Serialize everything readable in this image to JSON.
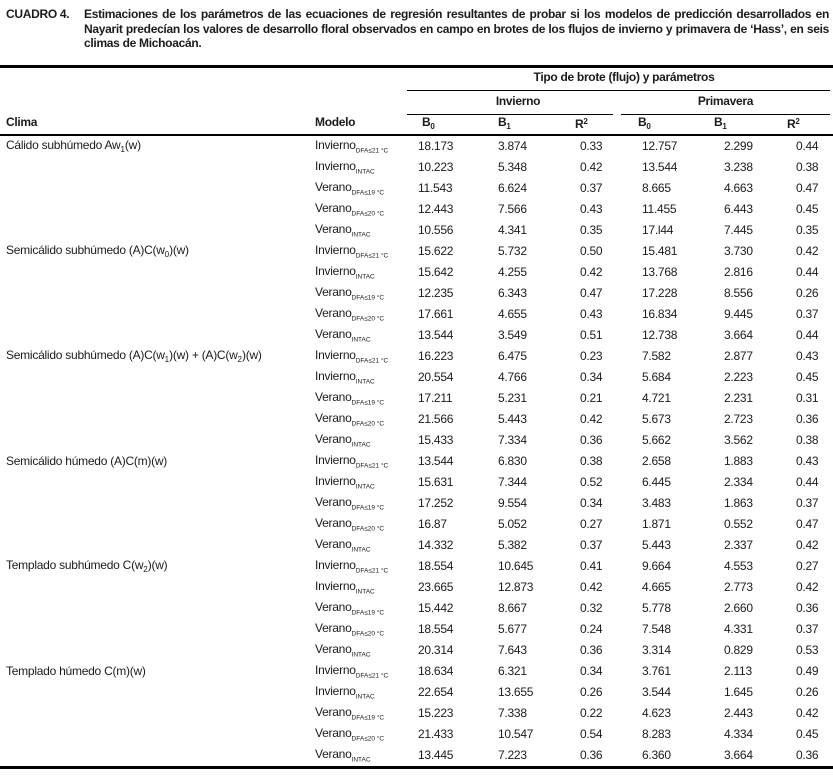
{
  "title": {
    "label": "CUADRO 4.",
    "text": "Estimaciones de los parámetros de las ecuaciones de regresión resultantes de probar si los modelos de predicción desarrollados en Nayarit predecían los valores de desarrollo floral observados en campo en brotes de los flujos de invierno y primavera de ‘Hass’, en seis climas de Michoacán."
  },
  "table": {
    "group_header": "Tipo de brote (flujo) y parámetros",
    "season_headers": {
      "invierno": "Invierno",
      "primavera": "Primavera"
    },
    "col_headers": {
      "clima": "Clima",
      "modelo": "Modelo"
    },
    "param_headers": [
      {
        "base": "B",
        "sub": "0"
      },
      {
        "base": "B",
        "sub": "1"
      },
      {
        "base": "R",
        "sup": "2"
      }
    ],
    "groups": [
      {
        "climate": [
          {
            "t": "Cálido subhúmedo Aw"
          },
          {
            "sub": "1"
          },
          {
            "t": "(w)"
          }
        ],
        "rows": [
          {
            "model": {
              "base": "Invierno",
              "sub": "DFA≤21 °C"
            },
            "values": [
              "18.173",
              "3.874",
              "0.33",
              "12.757",
              "2.299",
              "0.44"
            ]
          },
          {
            "model": {
              "base": "Invierno",
              "sub": "INTAC"
            },
            "values": [
              "10.223",
              "5.348",
              "0.42",
              "13.544",
              "3.238",
              "0.38"
            ]
          },
          {
            "model": {
              "base": "Verano",
              "sub": "DFA≤19 °C"
            },
            "values": [
              "11.543",
              "6.624",
              "0.37",
              "8.665",
              "4.663",
              "0.47"
            ]
          },
          {
            "model": {
              "base": "Verano",
              "sub": "DFA≤20 °C"
            },
            "values": [
              "12.443",
              "7.566",
              "0.43",
              "11.455",
              "6.443",
              "0.45"
            ]
          },
          {
            "model": {
              "base": "Verano",
              "sub": "INTAC"
            },
            "values": [
              "10.556",
              "4.341",
              "0.35",
              "17.l44",
              "7.445",
              "0.35"
            ]
          }
        ]
      },
      {
        "climate": [
          {
            "t": "Semicálido subhúmedo (A)C(w"
          },
          {
            "sub": "0"
          },
          {
            "t": ")(w)"
          }
        ],
        "rows": [
          {
            "model": {
              "base": "Invierno",
              "sub": "DFA≤21 °C"
            },
            "values": [
              "15.622",
              "5.732",
              "0.50",
              "15.481",
              "3.730",
              "0.42"
            ]
          },
          {
            "model": {
              "base": "Invierno",
              "sub": "INTAC"
            },
            "values": [
              "15.642",
              "4.255",
              "0.42",
              "13.768",
              "2.816",
              "0.44"
            ]
          },
          {
            "model": {
              "base": "Verano",
              "sub": "DFA≤19 °C"
            },
            "values": [
              "12.235",
              "6.343",
              "0.47",
              "17.228",
              "8.556",
              "0.26"
            ]
          },
          {
            "model": {
              "base": "Verano",
              "sub": "DFA≤20 °C"
            },
            "values": [
              "17.661",
              "4.655",
              "0.43",
              "16.834",
              "9.445",
              "0.37"
            ]
          },
          {
            "model": {
              "base": "Verano",
              "sub": "INTAC"
            },
            "values": [
              "13.544",
              "3.549",
              "0.51",
              "12.738",
              "3.664",
              "0.44"
            ]
          }
        ]
      },
      {
        "climate": [
          {
            "t": "Semicálido subhúmedo (A)C(w"
          },
          {
            "sub": "1"
          },
          {
            "t": ")(w) + (A)C(w"
          },
          {
            "sub": "2"
          },
          {
            "t": ")(w)"
          }
        ],
        "rows": [
          {
            "model": {
              "base": "Invierno",
              "sub": "DFA≤21 °C"
            },
            "values": [
              "16.223",
              "6.475",
              "0.23",
              "7.582",
              "2.877",
              "0.43"
            ]
          },
          {
            "model": {
              "base": "Invierno",
              "sub": "INTAC"
            },
            "values": [
              "20.554",
              "4.766",
              "0.34",
              "5.684",
              "2.223",
              "0.45"
            ]
          },
          {
            "model": {
              "base": "Verano",
              "sub": "DFA≤19 °C"
            },
            "values": [
              "17.211",
              "5.231",
              "0.21",
              "4.721",
              "2.231",
              "0.31"
            ]
          },
          {
            "model": {
              "base": "Verano",
              "sub": "DFA≤20 °C"
            },
            "values": [
              "21.566",
              "5.443",
              "0.42",
              "5.673",
              "2.723",
              "0.36"
            ]
          },
          {
            "model": {
              "base": "Verano",
              "sub": "INTAC"
            },
            "values": [
              "15.433",
              "7.334",
              "0.36",
              "5.662",
              "3.562",
              "0.38"
            ]
          }
        ]
      },
      {
        "climate": [
          {
            "t": "Semicálido húmedo (A)C(m)(w)"
          }
        ],
        "rows": [
          {
            "model": {
              "base": "Invierno",
              "sub": "DFA≤21 °C"
            },
            "values": [
              "13.544",
              "6.830",
              "0.38",
              "2.658",
              "1.883",
              "0.43"
            ]
          },
          {
            "model": {
              "base": "Invierno",
              "sub": "INTAC"
            },
            "values": [
              "15.631",
              "7.344",
              "0.52",
              "6.445",
              "2.334",
              "0.44"
            ]
          },
          {
            "model": {
              "base": "Verano",
              "sub": "DFA≤19 °C"
            },
            "values": [
              "17.252",
              "9.554",
              "0.34",
              "3.483",
              "1.863",
              "0.37"
            ]
          },
          {
            "model": {
              "base": "Verano",
              "sub": "DFA≤20 °C"
            },
            "values": [
              "16.87",
              "5.052",
              "0.27",
              "1.871",
              "0.552",
              "0.47"
            ]
          },
          {
            "model": {
              "base": "Verano",
              "sub": "INTAC"
            },
            "values": [
              "14.332",
              "5.382",
              "0.37",
              "5.443",
              "2.337",
              "0.42"
            ]
          }
        ]
      },
      {
        "climate": [
          {
            "t": "Templado subhúmedo C(w"
          },
          {
            "sub": "2"
          },
          {
            "t": ")(w)"
          }
        ],
        "rows": [
          {
            "model": {
              "base": "Invierno",
              "sub": "DFA≤21 °C"
            },
            "values": [
              "18.554",
              "10.645",
              "0.41",
              "9.664",
              "4.553",
              "0.27"
            ]
          },
          {
            "model": {
              "base": "Invierno",
              "sub": "INTAC"
            },
            "values": [
              "23.665",
              "12.873",
              "0.42",
              "4.665",
              "2.773",
              "0.42"
            ]
          },
          {
            "model": {
              "base": "Verano",
              "sub": "DFA≤19 °C"
            },
            "values": [
              "15.442",
              "8.667",
              "0.32",
              "5.778",
              "2.660",
              "0.36"
            ]
          },
          {
            "model": {
              "base": "Verano",
              "sub": "DFA≤20 °C"
            },
            "values": [
              "18.554",
              "5.677",
              "0.24",
              "7.548",
              "4.331",
              "0.37"
            ]
          },
          {
            "model": {
              "base": "Verano",
              "sub": "INTAC"
            },
            "values": [
              "20.314",
              "7.643",
              "0.36",
              "3.314",
              "0.829",
              "0.53"
            ]
          }
        ]
      },
      {
        "climate": [
          {
            "t": "Templado húmedo C(m)(w)"
          }
        ],
        "rows": [
          {
            "model": {
              "base": "Invierno",
              "sub": "DFA≤21 °C"
            },
            "values": [
              "18.634",
              "6.321",
              "0.34",
              "3.761",
              "2.113",
              "0.49"
            ]
          },
          {
            "model": {
              "base": "Invierno",
              "sub": "INTAC"
            },
            "values": [
              "22.654",
              "13.655",
              "0.26",
              "3.544",
              "1.645",
              "0.26"
            ]
          },
          {
            "model": {
              "base": "Verano",
              "sub": "DFA≤19 °C"
            },
            "values": [
              "15.223",
              "7.338",
              "0.22",
              "4.623",
              "2.443",
              "0.42"
            ]
          },
          {
            "model": {
              "base": "Verano",
              "sub": "DFA≤20 °C"
            },
            "values": [
              "21.433",
              "10.547",
              "0.54",
              "8.283",
              "4.334",
              "0.45"
            ]
          },
          {
            "model": {
              "base": "Verano",
              "sub": "INTAC"
            },
            "values": [
              "13.445",
              "7.223",
              "0.36",
              "6.360",
              "3.664",
              "0.36"
            ]
          }
        ]
      }
    ]
  }
}
